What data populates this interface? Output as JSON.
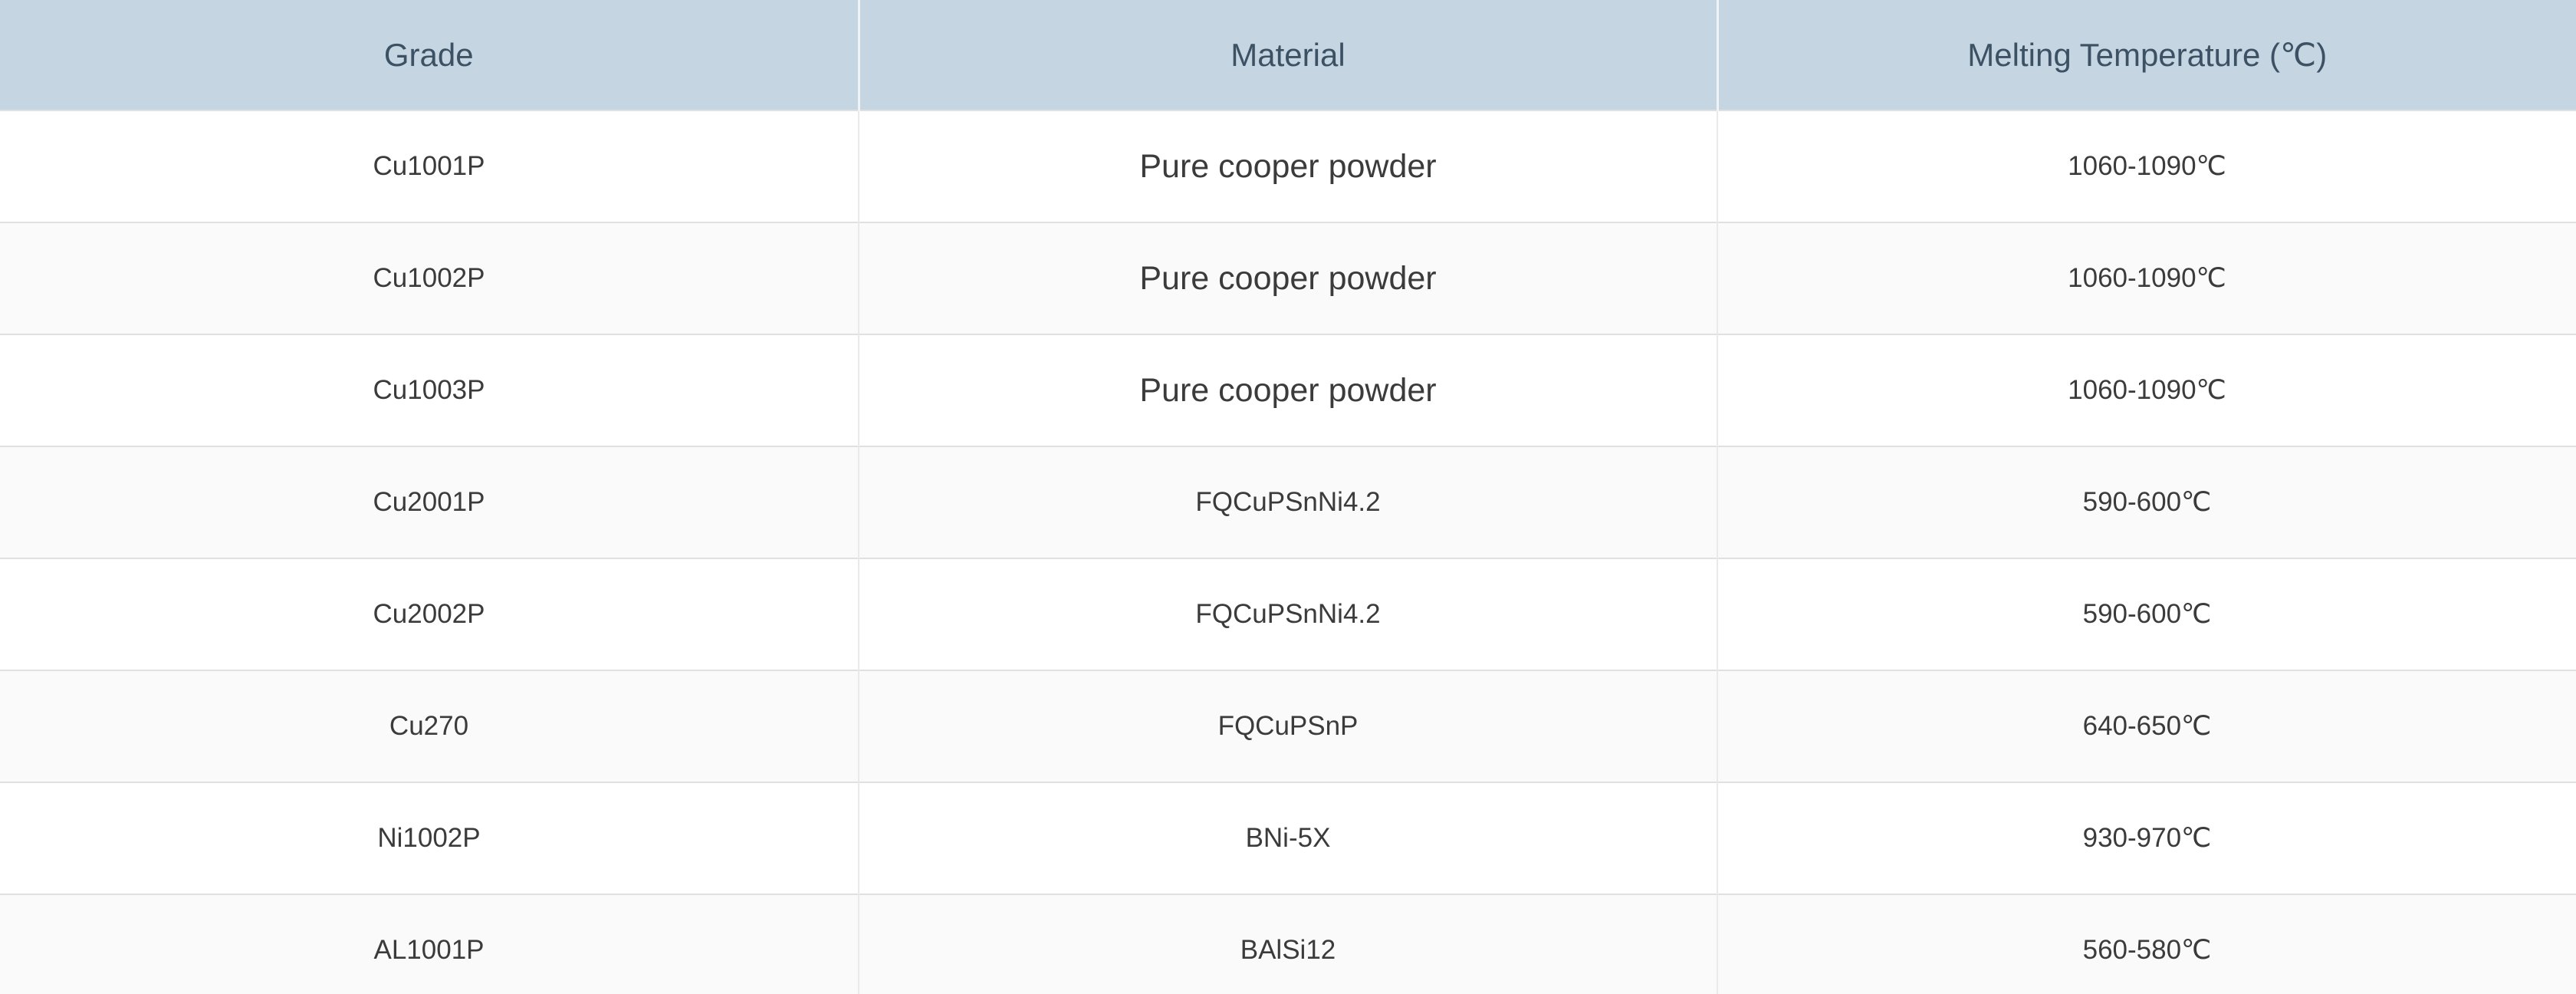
{
  "table": {
    "columns": [
      {
        "key": "grade",
        "label": "Grade"
      },
      {
        "key": "material",
        "label": "Material"
      },
      {
        "key": "temperature",
        "label": "Melting Temperature (℃)"
      }
    ],
    "rows": [
      {
        "grade": "Cu1001P",
        "material": "Pure cooper powder",
        "temperature": "1060-1090℃"
      },
      {
        "grade": "Cu1002P",
        "material": "Pure cooper powder",
        "temperature": "1060-1090℃"
      },
      {
        "grade": "Cu1003P",
        "material": "Pure cooper powder",
        "temperature": "1060-1090℃"
      },
      {
        "grade": "Cu2001P",
        "material": "FQCuPSnNi4.2",
        "temperature": "590-600℃"
      },
      {
        "grade": "Cu2002P",
        "material": "FQCuPSnNi4.2",
        "temperature": "590-600℃"
      },
      {
        "grade": "Cu270",
        "material": "FQCuPSnP",
        "temperature": "640-650℃"
      },
      {
        "grade": "Ni1002P",
        "material": "BNi-5X",
        "temperature": "930-970℃"
      },
      {
        "grade": "AL1001P",
        "material": "BAlSi12",
        "temperature": "560-580℃"
      }
    ]
  },
  "colors": {
    "header_bg": "#c5d6e2",
    "header_text": "#3c5164",
    "body_text": "#3b3b3b",
    "row_bg": "#ffffff",
    "row_alt_bg": "#fafafa",
    "row_border": "#e0e0e0",
    "column_border": "#e9e9e9"
  }
}
